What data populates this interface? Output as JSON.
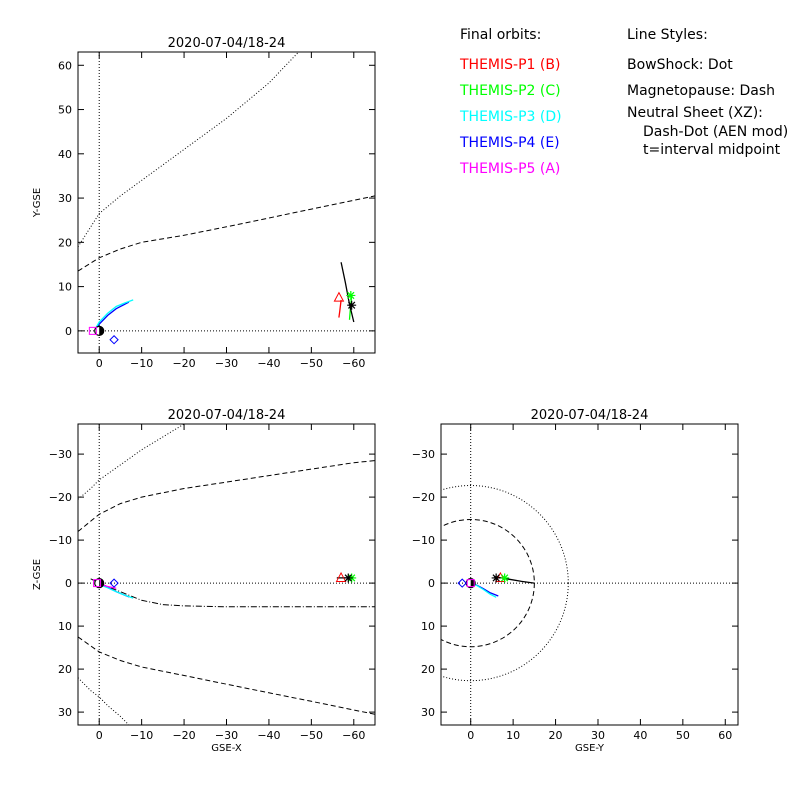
{
  "legend": {
    "title": "Final orbits:",
    "probes": [
      {
        "label": "THEMIS-P1 (B)",
        "color": "#ff0000"
      },
      {
        "label": "THEMIS-P2 (C)",
        "color": "#00ff00"
      },
      {
        "label": "THEMIS-P3 (D)",
        "color": "#00ffff"
      },
      {
        "label": "THEMIS-P4 (E)",
        "color": "#0000ff"
      },
      {
        "label": "THEMIS-P5 (A)",
        "color": "#ff00ff"
      }
    ],
    "styles_title": "Line Styles:",
    "styles": [
      "BowShock: Dot",
      "Magnetopause: Dash",
      "Neutral Sheet (XZ):",
      "Dash-Dot (AEN mod)",
      "t=interval midpoint"
    ]
  },
  "chart_data": [
    {
      "type": "line",
      "title": "2020-07-04/18-24",
      "xlabel": "",
      "ylabel": "Y-GSE",
      "xlim": [
        5,
        -65
      ],
      "ylim": [
        63,
        -5
      ],
      "xticks": [
        0,
        -10,
        -20,
        -30,
        -40,
        -50,
        -60
      ],
      "yticks": [
        0,
        10,
        20,
        30,
        40,
        50,
        60
      ],
      "bowshock": {
        "x": [
          5,
          0,
          -5,
          -10,
          -15,
          -20,
          -30,
          -40,
          -47
        ],
        "y": [
          19,
          26.5,
          30.5,
          34,
          37.5,
          41,
          48,
          56,
          63
        ]
      },
      "magnetopause": {
        "x": [
          5,
          0,
          -5,
          -10,
          -20,
          -30,
          -40,
          -50,
          -60,
          -65
        ],
        "y": [
          13.5,
          16.5,
          18.5,
          20,
          21.6,
          23.5,
          25.5,
          27.5,
          29.5,
          30.5
        ]
      },
      "orbits": [
        {
          "x": [
            1,
            0,
            -2,
            -4,
            -6,
            -7
          ],
          "y": [
            0.3,
            1.5,
            3.5,
            5,
            6,
            6.5
          ],
          "color": "#0000ff"
        },
        {
          "x": [
            1,
            0,
            -2,
            -4,
            -6,
            -8
          ],
          "y": [
            0.3,
            2,
            4,
            5.5,
            6.3,
            7
          ],
          "color": "#00ffff"
        },
        {
          "x": [
            -56.5,
            -56.7,
            -57
          ],
          "y": [
            3,
            4.5,
            7
          ],
          "color": "#ff0000"
        },
        {
          "x": [
            -59,
            -59.2,
            -59.5
          ],
          "y": [
            2.5,
            5,
            8
          ],
          "color": "#00ff00"
        },
        {
          "x": [
            -60,
            -59,
            -58,
            -57
          ],
          "y": [
            2,
            6,
            11,
            15.5
          ],
          "color": "#000000"
        }
      ],
      "markers": [
        {
          "x": -3.5,
          "y": -2,
          "shape": "diamond",
          "color": "#0000ff"
        },
        {
          "x": 1.5,
          "y": 0,
          "shape": "square",
          "color": "#ff00ff"
        },
        {
          "x": -56.5,
          "y": 7.5,
          "shape": "triangle",
          "color": "#ff0000"
        },
        {
          "x": -59.3,
          "y": 8,
          "shape": "asterisk",
          "color": "#00ff00"
        },
        {
          "x": -59.5,
          "y": 5.8,
          "shape": "asterisk",
          "color": "#000000"
        }
      ]
    },
    {
      "type": "line",
      "title": "2020-07-04/18-24",
      "xlabel": "GSE-X",
      "ylabel": "Z-GSE",
      "xlim": [
        5,
        -65
      ],
      "ylim": [
        -37,
        33
      ],
      "xticks": [
        0,
        -10,
        -20,
        -30,
        -40,
        -50,
        -60
      ],
      "yticks": [
        30,
        20,
        10,
        0,
        -10,
        -20,
        -30
      ],
      "bowshock": [
        {
          "x": [
            5,
            2,
            0,
            -2,
            -5,
            -7
          ],
          "y": [
            22,
            25,
            26.5,
            28.5,
            31,
            33
          ]
        },
        {
          "x": [
            5,
            2,
            0,
            -5,
            -10,
            -15,
            -20
          ],
          "y": [
            -19.5,
            -22,
            -24,
            -27.5,
            -31,
            -34,
            -37
          ]
        }
      ],
      "magnetopause": [
        {
          "x": [
            5,
            0,
            -5,
            -10,
            -20,
            -30,
            -40,
            -50,
            -60,
            -65
          ],
          "y": [
            12.5,
            16,
            18,
            19.5,
            21.5,
            23.5,
            25.5,
            27.5,
            29.5,
            30.5
          ]
        },
        {
          "x": [
            5,
            0,
            -5,
            -10,
            -20,
            -30,
            -40,
            -50,
            -60,
            -65
          ],
          "y": [
            -12,
            -16,
            -18.5,
            -20,
            -22,
            -23.5,
            -25,
            -26.5,
            -28,
            -28.5
          ]
        }
      ],
      "neutral_sheet": {
        "x": [
          2,
          0,
          -5,
          -10,
          -15,
          -20,
          -30,
          -40,
          -50,
          -60,
          -65
        ],
        "y": [
          -1,
          0,
          2,
          4,
          5,
          5.3,
          5.5,
          5.5,
          5.5,
          5.5,
          5.5
        ]
      },
      "orbits": [
        {
          "x": [
            1,
            0,
            -2,
            -4,
            -6,
            -7
          ],
          "y": [
            0,
            0.3,
            1,
            2,
            2.8,
            3.2
          ],
          "color": "#0000ff"
        },
        {
          "x": [
            1,
            0,
            -2,
            -4,
            -6,
            -8
          ],
          "y": [
            0,
            0.3,
            1.1,
            2,
            2.8,
            3.5
          ],
          "color": "#00ffff"
        },
        {
          "x": [
            1,
            0,
            -2,
            -4
          ],
          "y": [
            0,
            0.2,
            0.8,
            1.2
          ],
          "color": "#ff00ff"
        },
        {
          "x": [
            -56,
            -58,
            -60
          ],
          "y": [
            -1.2,
            -1.2,
            -1.2
          ],
          "color": "#000000"
        }
      ],
      "markers": [
        {
          "x": -3.5,
          "y": 0,
          "shape": "diamond",
          "color": "#0000ff"
        },
        {
          "x": 0.5,
          "y": 0,
          "shape": "square",
          "color": "#ff00ff"
        },
        {
          "x": -57,
          "y": -1.2,
          "shape": "triangle",
          "color": "#ff0000"
        },
        {
          "x": -59.5,
          "y": -1.2,
          "shape": "asterisk",
          "color": "#00ff00"
        },
        {
          "x": -58.7,
          "y": -1.2,
          "shape": "asterisk",
          "color": "#000000"
        }
      ]
    },
    {
      "type": "line",
      "title": "2020-07-04/18-24",
      "xlabel": "GSE-Y",
      "ylabel": "",
      "xlim": [
        -7,
        63
      ],
      "ylim": [
        -37,
        33
      ],
      "xticks": [
        0,
        10,
        20,
        30,
        40,
        50,
        60
      ],
      "yticks": [
        30,
        20,
        10,
        0,
        -10,
        -20,
        -30
      ],
      "bowshock_radius": 23,
      "magnetopause_radius": 15,
      "orbits": [
        {
          "x": [
            0,
            1.5,
            3,
            4.5,
            6.5
          ],
          "y": [
            0,
            0.5,
            1.3,
            2.2,
            3
          ],
          "color": "#0000ff"
        },
        {
          "x": [
            0,
            1.5,
            3,
            4.5,
            6
          ],
          "y": [
            0,
            0.6,
            1.5,
            2.5,
            3.3
          ],
          "color": "#00ffff"
        },
        {
          "x": [
            5.5,
            9,
            12,
            15
          ],
          "y": [
            -1.5,
            -0.9,
            -0.4,
            0
          ],
          "color": "#000000"
        }
      ],
      "markers": [
        {
          "x": -2,
          "y": 0,
          "shape": "diamond",
          "color": "#0000ff"
        },
        {
          "x": 0,
          "y": 0,
          "shape": "square",
          "color": "#ff00ff"
        },
        {
          "x": 7,
          "y": -1.2,
          "shape": "triangle",
          "color": "#ff0000"
        },
        {
          "x": 8,
          "y": -1.2,
          "shape": "asterisk",
          "color": "#00ff00"
        },
        {
          "x": 6,
          "y": -1.2,
          "shape": "asterisk",
          "color": "#000000"
        }
      ]
    }
  ]
}
